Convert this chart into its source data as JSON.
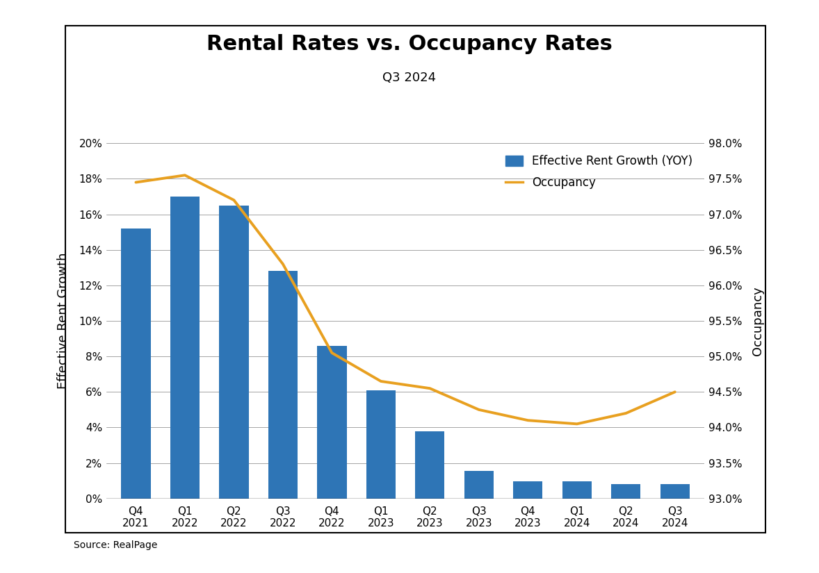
{
  "title": "Rental Rates vs. Occupancy Rates",
  "subtitle": "Q3 2024",
  "source": "Source: RealPage",
  "categories": [
    "Q4\n2021",
    "Q1\n2022",
    "Q2\n2022",
    "Q3\n2022",
    "Q4\n2022",
    "Q1\n2023",
    "Q2\n2023",
    "Q3\n2023",
    "Q4\n2023",
    "Q1\n2024",
    "Q2\n2024",
    "Q3\n2024"
  ],
  "rent_growth": [
    15.2,
    17.0,
    16.5,
    12.8,
    8.6,
    6.1,
    3.8,
    1.55,
    0.95,
    0.95,
    0.8,
    0.8
  ],
  "occupancy": [
    97.45,
    97.55,
    97.2,
    96.3,
    95.05,
    94.65,
    94.55,
    94.25,
    94.1,
    94.05,
    94.2,
    94.5
  ],
  "bar_color": "#2E75B6",
  "line_color": "#E8A020",
  "background_color": "#FFFFFF",
  "ylabel_left": "Effective Rent Growth",
  "ylabel_right": "Occupancy",
  "ylim_left": [
    0,
    20
  ],
  "ylim_right": [
    93.0,
    98.0
  ],
  "yticks_left": [
    0,
    2,
    4,
    6,
    8,
    10,
    12,
    14,
    16,
    18,
    20
  ],
  "yticks_right": [
    93.0,
    93.5,
    94.0,
    94.5,
    95.0,
    95.5,
    96.0,
    96.5,
    97.0,
    97.5,
    98.0
  ],
  "legend_labels": [
    "Effective Rent Growth (YOY)",
    "Occupancy"
  ],
  "title_fontsize": 22,
  "subtitle_fontsize": 13,
  "axis_label_fontsize": 13,
  "tick_fontsize": 11,
  "legend_fontsize": 12
}
